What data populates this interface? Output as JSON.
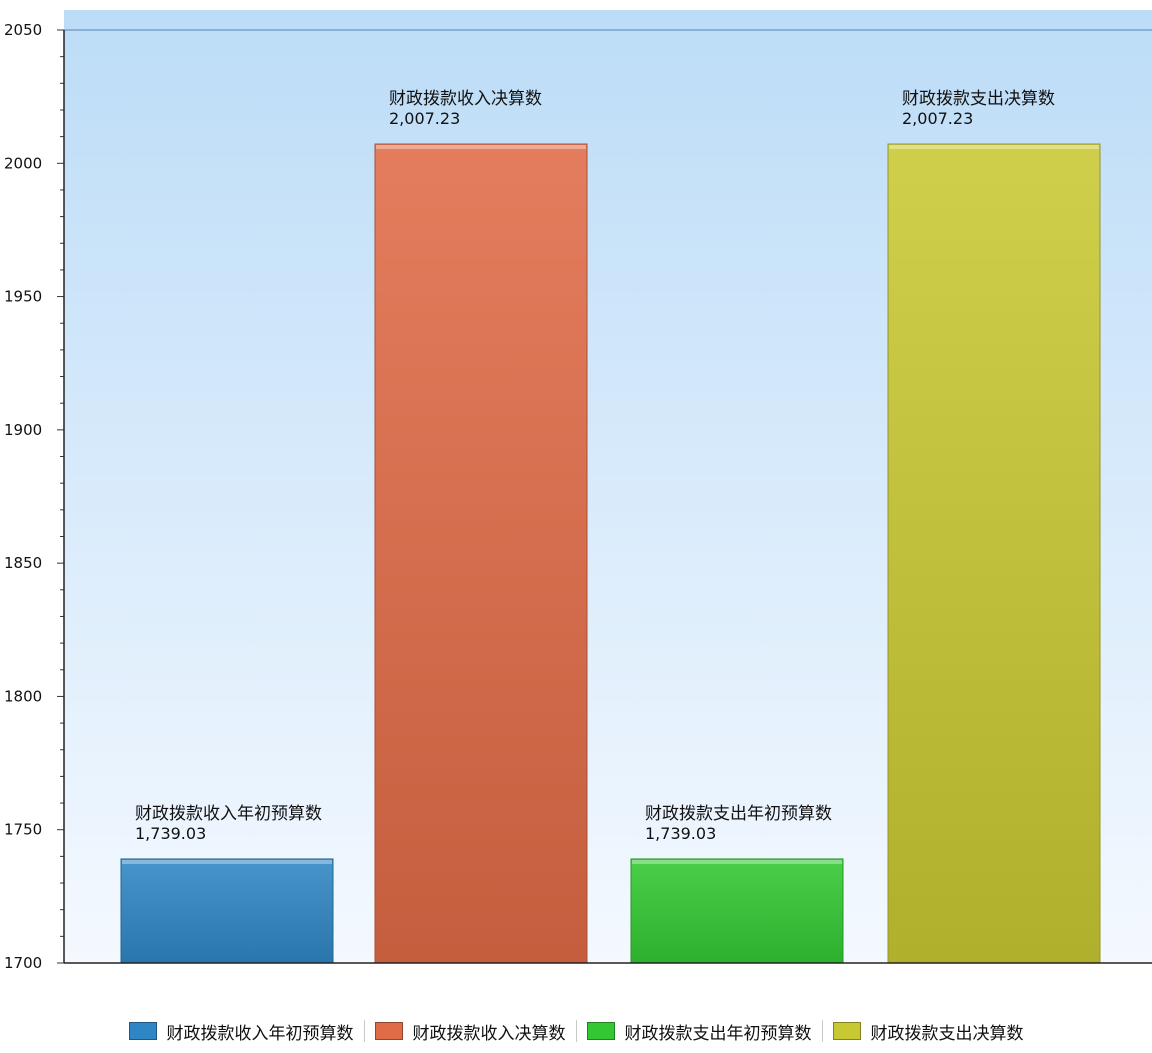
{
  "chart_data": {
    "type": "bar",
    "title": "",
    "xlabel": "",
    "ylabel": "",
    "ylim": [
      1700,
      2050
    ],
    "yticks": [
      1700,
      1750,
      1800,
      1850,
      1900,
      1950,
      2000,
      2050
    ],
    "grid": false,
    "legend_position": "bottom",
    "categories": [
      "财政拨款收入年初预算数",
      "财政拨款收入决算数",
      "财政拨款支出年初预算数",
      "财政拨款支出决算数"
    ],
    "values": [
      1739.03,
      2007.23,
      1739.03,
      2007.23
    ],
    "value_labels": [
      "1,739.03",
      "2,007.23",
      "1,739.03",
      "2,007.23"
    ],
    "colors": [
      "#2f86c4",
      "#e06b47",
      "#33c833",
      "#c8c832"
    ],
    "legend": [
      "财政拨款收入年初预算数",
      "财政拨款收入决算数",
      "财政拨款支出年初预算数",
      "财政拨款支出决算数"
    ]
  }
}
